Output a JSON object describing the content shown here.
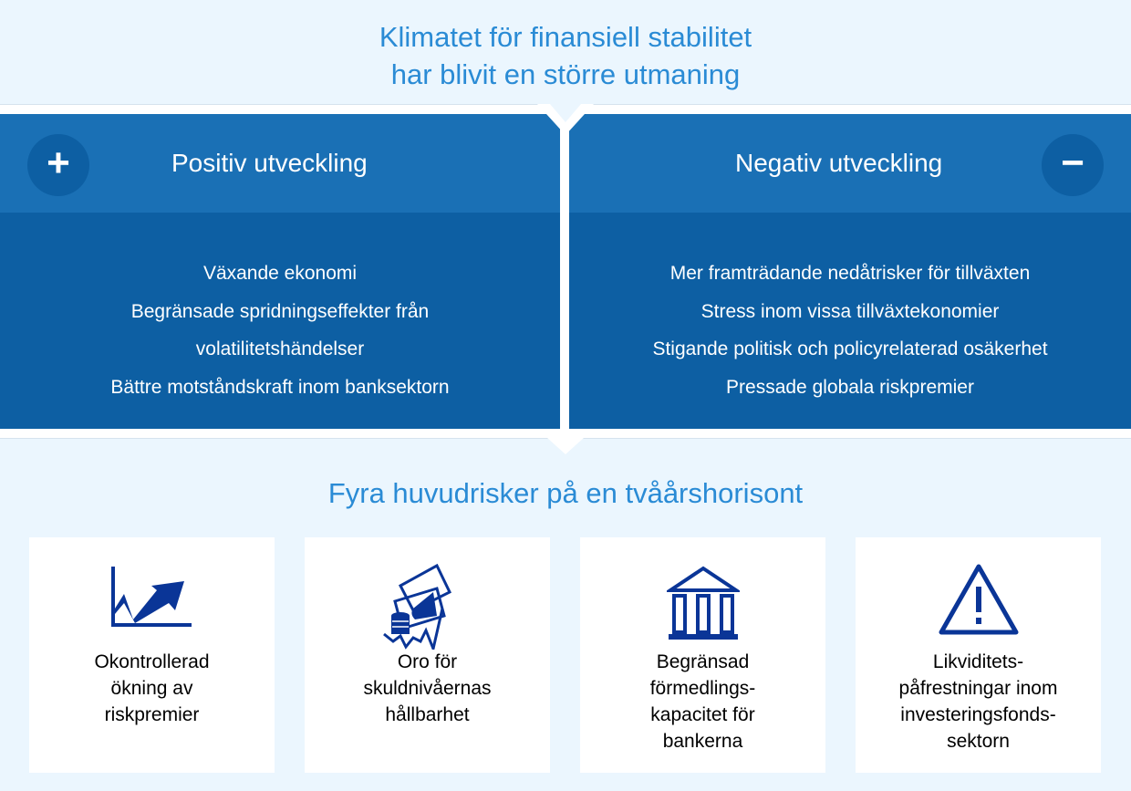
{
  "header": {
    "title_line1": "Klimatet för finansiell stabilitet",
    "title_line2": "har blivit en större utmaning"
  },
  "positive": {
    "title": "Positiv utveckling",
    "icon": "plus-icon",
    "symbol": "+",
    "items": [
      "Växande ekonomi",
      "Begränsade spridningseffekter från",
      "volatilitetshändelser",
      "Bättre motståndskraft inom banksektorn"
    ]
  },
  "negative": {
    "title": "Negativ utveckling",
    "icon": "minus-icon",
    "symbol": "−",
    "items": [
      "Mer framträdande nedåtrisker för tillväxten",
      "Stress inom vissa tillväxtekonomier",
      "Stigande politisk och policyrelaterad osäkerhet",
      "Pressade globala riskpremier"
    ]
  },
  "risks": {
    "title": "Fyra huvudrisker på en tvåårshorisont",
    "cards": [
      {
        "icon": "rising-chart-icon",
        "label": "Okontrollerad\nökning av\nriskpremier"
      },
      {
        "icon": "money-debt-icon",
        "label": "Oro för\nskuldnivåernas\nhållbarhet"
      },
      {
        "icon": "bank-building-icon",
        "label": "Begränsad\nförmedlings-\nkapacitet för\nbankerna"
      },
      {
        "icon": "warning-triangle-icon",
        "label": "Likviditets-\npåfrestningar inom\ninvesteringsfonds-\nsektorn"
      }
    ]
  },
  "colors": {
    "title": "#2a8bd5",
    "header_band": "#1a70b5",
    "panel": "#0d5fa3",
    "icon": "#0a3597",
    "background": "#ebf6fe"
  }
}
